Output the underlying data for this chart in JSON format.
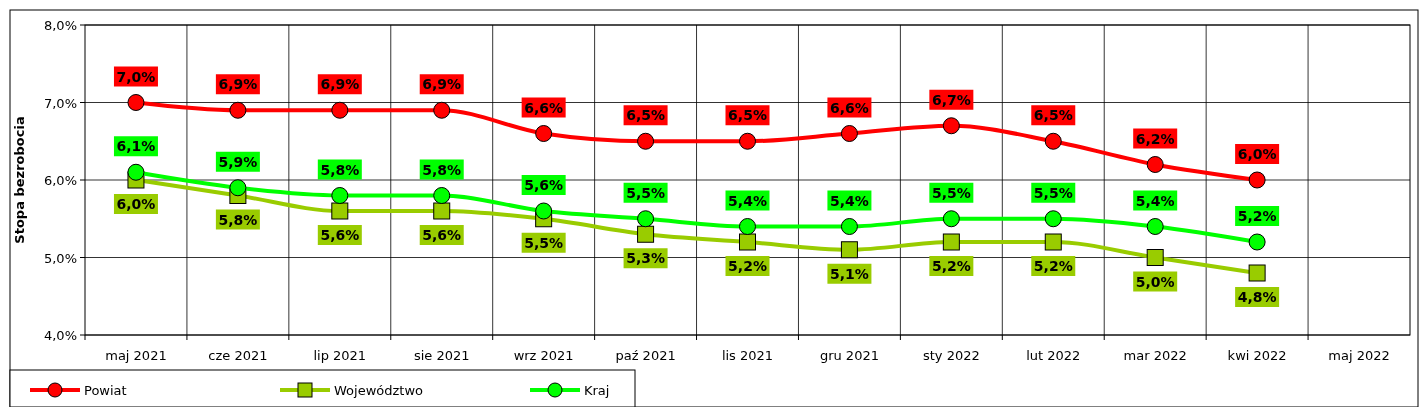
{
  "chart_data": {
    "type": "line",
    "ylabel": "Stopa bezrobocia",
    "categories": [
      "maj 2021",
      "cze 2021",
      "lip 2021",
      "sie 2021",
      "wrz 2021",
      "paź 2021",
      "lis 2021",
      "gru 2021",
      "sty 2022",
      "lut 2022",
      "mar 2022",
      "kwi 2022",
      "maj 2022"
    ],
    "series": [
      {
        "name": "Powiat",
        "color": "#ff0000",
        "marker": "circle",
        "values": [
          7.0,
          6.9,
          6.9,
          6.9,
          6.6,
          6.5,
          6.5,
          6.6,
          6.7,
          6.5,
          6.2,
          6.0,
          null
        ],
        "value_labels": [
          "7,0%",
          "6,9%",
          "6,9%",
          "6,9%",
          "6,6%",
          "6,5%",
          "6,5%",
          "6,6%",
          "6,7%",
          "6,5%",
          "6,2%",
          "6,0%",
          null
        ]
      },
      {
        "name": "Województwo",
        "color": "#99cc00",
        "marker": "square",
        "values": [
          6.0,
          5.8,
          5.6,
          5.6,
          5.5,
          5.3,
          5.2,
          5.1,
          5.2,
          5.2,
          5.0,
          4.8,
          null
        ],
        "value_labels": [
          "6,0%",
          "5,8%",
          "5,6%",
          "5,6%",
          "5,5%",
          "5,3%",
          "5,2%",
          "5,1%",
          "5,2%",
          "5,2%",
          "5,0%",
          "4,8%",
          null
        ]
      },
      {
        "name": "Kraj",
        "color": "#00ff00",
        "marker": "circle",
        "values": [
          6.1,
          5.9,
          5.8,
          5.8,
          5.6,
          5.5,
          5.4,
          5.4,
          5.5,
          5.5,
          5.4,
          5.2,
          null
        ],
        "value_labels": [
          "6,1%",
          "5,9%",
          "5,8%",
          "5,8%",
          "5,6%",
          "5,5%",
          "5,4%",
          "5,4%",
          "5,5%",
          "5,5%",
          "5,4%",
          "5,2%",
          null
        ]
      }
    ],
    "ylim": [
      4,
      8
    ],
    "yticks": [
      {
        "value": 4,
        "label": "4,0%"
      },
      {
        "value": 5,
        "label": "5,0%"
      },
      {
        "value": 6,
        "label": "6,0%"
      },
      {
        "value": 7,
        "label": "7,0%"
      },
      {
        "value": 8,
        "label": "8,0%"
      }
    ],
    "grid": true,
    "legend": "bottom left",
    "line_style": "solid"
  }
}
